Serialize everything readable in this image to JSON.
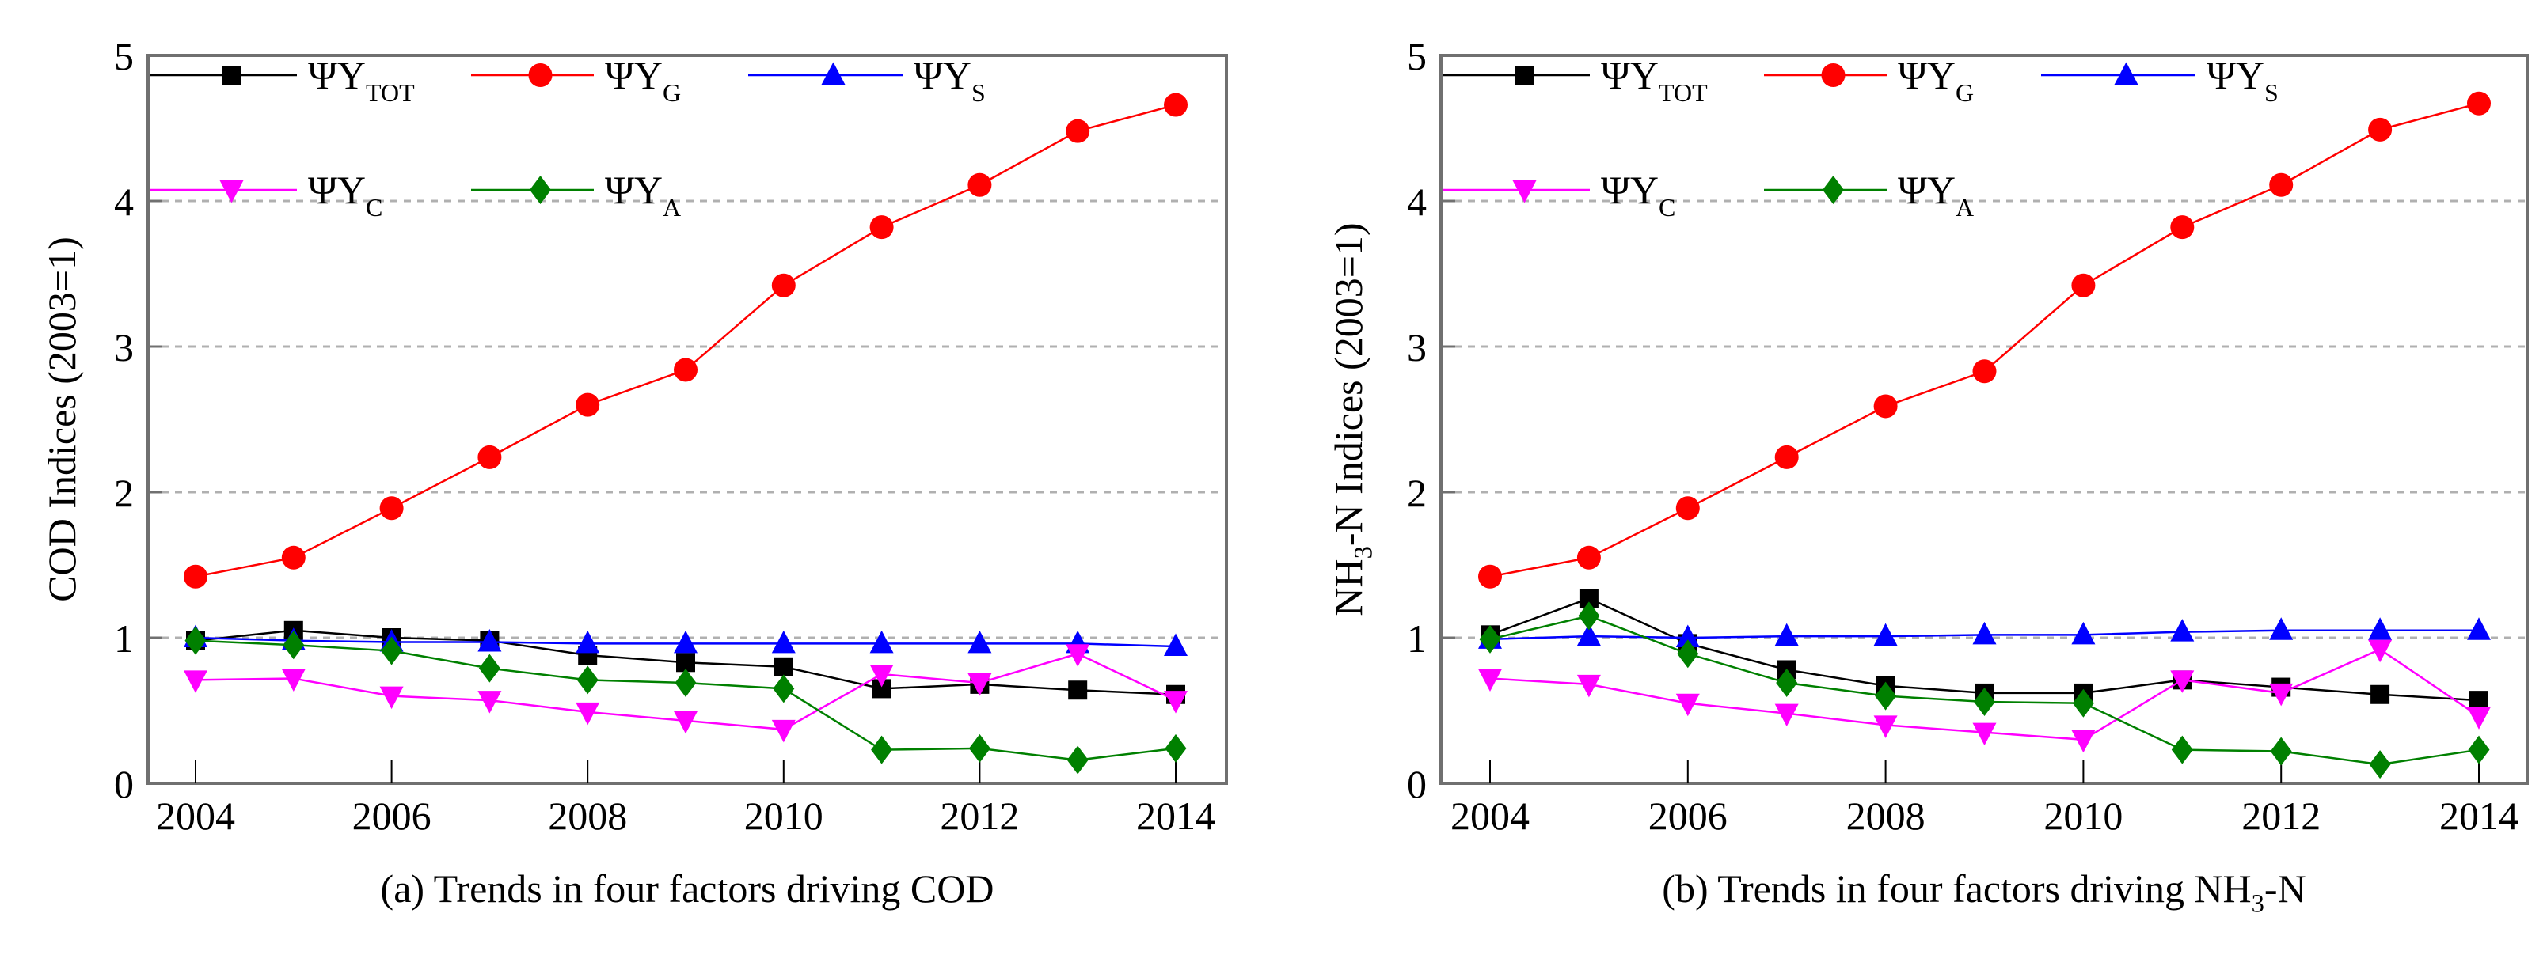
{
  "chart_data": [
    {
      "type": "line",
      "caption": "(a) Trends in four factors driving COD",
      "ylabel": "COD Indices (2003=1)",
      "xlabel": "",
      "x": [
        2004,
        2005,
        2006,
        2007,
        2008,
        2009,
        2010,
        2011,
        2012,
        2013,
        2014
      ],
      "xticks": [
        "2004",
        "2006",
        "2008",
        "2010",
        "2012",
        "2014"
      ],
      "yticks": [
        "0",
        "1",
        "2",
        "3",
        "4",
        "5"
      ],
      "ylim": [
        0,
        5
      ],
      "grid": "horizontal dashed at 1-4",
      "legend": "top-left, two rows",
      "series": [
        {
          "name": "ΨY",
          "sub": "TOT",
          "color": "#000000",
          "marker": "square",
          "values": [
            0.98,
            1.05,
            1.0,
            0.98,
            0.88,
            0.83,
            0.8,
            0.65,
            0.68,
            0.64,
            0.61
          ]
        },
        {
          "name": "ΨY",
          "sub": "G",
          "color": "#ff0000",
          "marker": "circle",
          "values": [
            1.42,
            1.55,
            1.89,
            2.24,
            2.6,
            2.84,
            3.42,
            3.82,
            4.11,
            4.48,
            4.66
          ]
        },
        {
          "name": "ΨY",
          "sub": "S",
          "color": "#0000ff",
          "marker": "triangle-up",
          "values": [
            1.0,
            0.98,
            0.97,
            0.97,
            0.96,
            0.96,
            0.96,
            0.96,
            0.96,
            0.96,
            0.94
          ]
        },
        {
          "name": "ΨY",
          "sub": "C",
          "color": "#ff00ff",
          "marker": "triangle-down",
          "values": [
            0.71,
            0.72,
            0.6,
            0.57,
            0.49,
            0.43,
            0.37,
            0.75,
            0.69,
            0.89,
            0.57
          ]
        },
        {
          "name": "ΨY",
          "sub": "A",
          "color": "#008000",
          "marker": "diamond",
          "values": [
            0.98,
            0.95,
            0.91,
            0.79,
            0.71,
            0.69,
            0.65,
            0.23,
            0.24,
            0.16,
            0.24
          ]
        }
      ]
    },
    {
      "type": "line",
      "caption": "(b) Trends in four factors driving NH3-N",
      "ylabel": "NH3-N Indices (2003=1)",
      "xlabel": "",
      "x": [
        2004,
        2005,
        2006,
        2007,
        2008,
        2009,
        2010,
        2011,
        2012,
        2013,
        2014
      ],
      "xticks": [
        "2004",
        "2006",
        "2008",
        "2010",
        "2012",
        "2014"
      ],
      "yticks": [
        "0",
        "1",
        "2",
        "3",
        "4",
        "5"
      ],
      "ylim": [
        0,
        5
      ],
      "grid": "horizontal dashed at 1-4",
      "legend": "top-left, two rows",
      "series": [
        {
          "name": "ΨY",
          "sub": "TOT",
          "color": "#000000",
          "marker": "square",
          "values": [
            1.02,
            1.27,
            0.96,
            0.78,
            0.67,
            0.62,
            0.62,
            0.71,
            0.66,
            0.61,
            0.57
          ]
        },
        {
          "name": "ΨY",
          "sub": "G",
          "color": "#ff0000",
          "marker": "circle",
          "values": [
            1.42,
            1.55,
            1.89,
            2.24,
            2.59,
            2.83,
            3.42,
            3.82,
            4.11,
            4.49,
            4.67
          ]
        },
        {
          "name": "ΨY",
          "sub": "S",
          "color": "#0000ff",
          "marker": "triangle-up",
          "values": [
            0.99,
            1.01,
            1.0,
            1.01,
            1.01,
            1.02,
            1.02,
            1.04,
            1.05,
            1.05,
            1.05
          ]
        },
        {
          "name": "ΨY",
          "sub": "C",
          "color": "#ff00ff",
          "marker": "triangle-down",
          "values": [
            0.72,
            0.68,
            0.55,
            0.48,
            0.4,
            0.35,
            0.3,
            0.71,
            0.62,
            0.92,
            0.46
          ]
        },
        {
          "name": "ΨY",
          "sub": "A",
          "color": "#008000",
          "marker": "diamond",
          "values": [
            0.99,
            1.15,
            0.89,
            0.69,
            0.6,
            0.56,
            0.55,
            0.23,
            0.22,
            0.13,
            0.23
          ]
        }
      ]
    }
  ]
}
